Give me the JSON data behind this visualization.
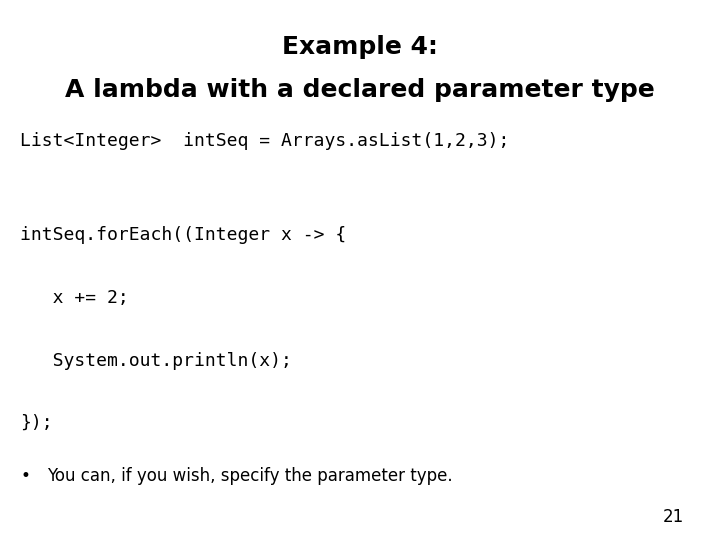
{
  "title_line1": "Example 4:",
  "title_line2": "A lambda with a declared parameter type",
  "code_block": [
    {
      "text": "List<Integer>  intSeq = Arrays.asList(1,2,3);",
      "indent": 0
    },
    {
      "text": "",
      "indent": 0
    },
    {
      "text": "",
      "indent": 0
    },
    {
      "text": "intSeq.forEach((Integer x -> {",
      "indent": 0
    },
    {
      "text": "",
      "indent": 0
    },
    {
      "text": "   x += 2;",
      "indent": 1
    },
    {
      "text": "",
      "indent": 0
    },
    {
      "text": "   System.out.println(x);",
      "indent": 1
    },
    {
      "text": "",
      "indent": 0
    },
    {
      "text": "});",
      "indent": 0
    }
  ],
  "bullet_text": "You can, if you wish, specify the parameter type.",
  "page_number": "21",
  "bg_color": "#ffffff",
  "text_color": "#000000",
  "title1_fontsize": 18,
  "title2_fontsize": 18,
  "code_fontsize": 13,
  "bullet_fontsize": 12,
  "page_fontsize": 12
}
